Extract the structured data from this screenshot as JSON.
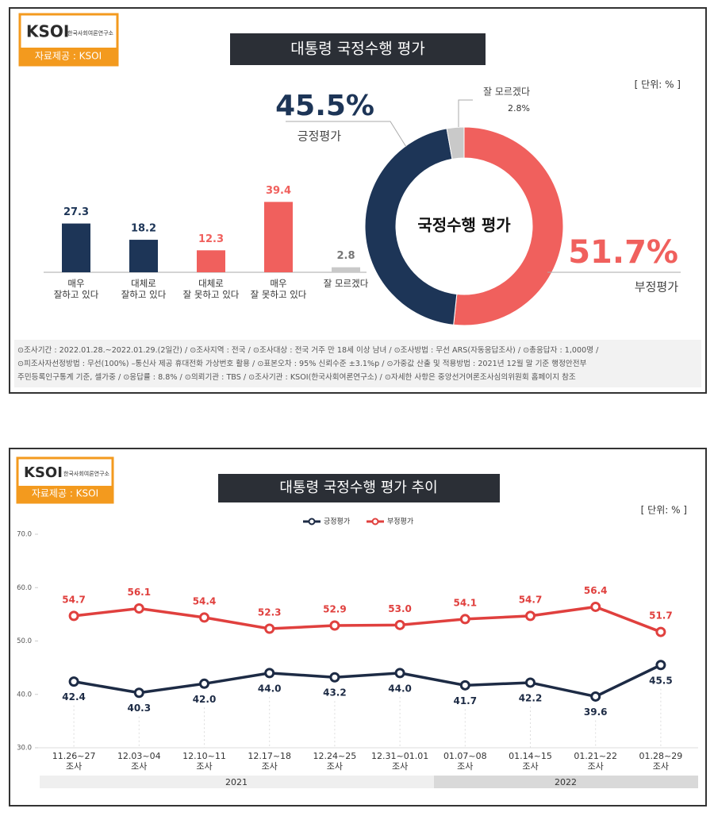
{
  "panels": [
    {
      "logo_text": "KSOI",
      "logo_sub": "한국사회여론연구소",
      "source": "자료제공 : KSOI",
      "title": "대통령 국정수행 평가",
      "unit": "[ 단위: % ]",
      "notes": [
        "⊙조사기간 : 2022.01.28.~2022.01.29.(2일간)  / ⊙조사지역 : 전국 / ⊙조사대상 : 전국 거주 만 18세 이상 남녀 / ⊙조사방법 : 무선 ARS(자동응답조사) / ⊙총응답자 : 1,000명 /",
        "⊙피조사자선정방법 : 무선(100%) –통신사 제공 휴대전화 가상번호 활용 / ⊙표본오차 : 95% 신뢰수준 ±3.1%p / ⊙가중값 산출 및 적용방법 : 2021년 12월 말 기준 행정안전부",
        "주민등록인구통계 기준, 셀가중 / ⊙응답률 : 8.8% / ⊙의뢰기관 : TBS / ⊙조사기관 : KSOI(한국사회여론연구소) / ⊙자세한 사항은 중앙선거여론조사심의위원회 홈페이지 참조"
      ]
    },
    {
      "logo_text": "KSOI",
      "logo_sub": "한국사회여론연구소",
      "source": "자료제공 : KSOI",
      "title": "대통령 국정수행 평가 추이",
      "unit": "[ 단위: % ]",
      "years": [
        "2021",
        "2022"
      ]
    }
  ],
  "chart_data": [
    {
      "type": "bar",
      "categories": [
        "매우\n잘하고 있다",
        "대체로\n잘하고 있다",
        "대체로\n잘 못하고 있다",
        "매우\n잘 못하고 있다",
        "잘 모르겠다"
      ],
      "values": [
        27.3,
        18.2,
        12.3,
        39.4,
        2.8
      ],
      "colors": [
        "#1d3557",
        "#1d3557",
        "#f0605d",
        "#f0605d",
        "#c9c9c9"
      ]
    },
    {
      "type": "pie",
      "center_label": "국정수행 평가",
      "categories": [
        "부정평가",
        "긍정평가",
        "잘 모르겠다"
      ],
      "values": [
        51.7,
        45.5,
        2.8
      ],
      "value_labels": [
        "51.7%",
        "45.5%",
        "2.8%"
      ],
      "colors": [
        "#f0605d",
        "#1d3557",
        "#c9c9c9"
      ]
    },
    {
      "type": "line",
      "categories": [
        "11.26~27\n조사",
        "12.03~04\n조사",
        "12.10~11\n조사",
        "12.17~18\n조사",
        "12.24~25\n조사",
        "12.31~01.01\n조사",
        "01.07~08\n조사",
        "01.14~15\n조사",
        "01.21~22\n조사",
        "01.28~29\n조사"
      ],
      "ylim": [
        30,
        70
      ],
      "yticks": [
        {
          "value": 30,
          "label": "30.0"
        },
        {
          "value": 40,
          "label": "40.0"
        },
        {
          "value": 50,
          "label": "50.0"
        },
        {
          "value": 60,
          "label": "60.0"
        },
        {
          "value": 70,
          "label": "70.0"
        }
      ],
      "series": [
        {
          "name": "긍정평가",
          "color": "#1d2b45",
          "values": [
            42.4,
            40.3,
            42.0,
            44.0,
            43.2,
            44.0,
            41.7,
            42.2,
            39.6,
            45.5
          ],
          "value_labels": [
            "42.4",
            "40.3",
            "42.0",
            "44.0",
            "43.2",
            "44.0",
            "41.7",
            "42.2",
            "39.6",
            "45.5"
          ]
        },
        {
          "name": "부정평가",
          "color": "#e0403e",
          "values": [
            54.7,
            56.1,
            54.4,
            52.3,
            52.9,
            53.0,
            54.1,
            54.7,
            56.4,
            51.7
          ],
          "value_labels": [
            "54.7",
            "56.1",
            "54.4",
            "52.3",
            "52.9",
            "53.0",
            "54.1",
            "54.7",
            "56.4",
            "51.7"
          ]
        }
      ]
    }
  ]
}
